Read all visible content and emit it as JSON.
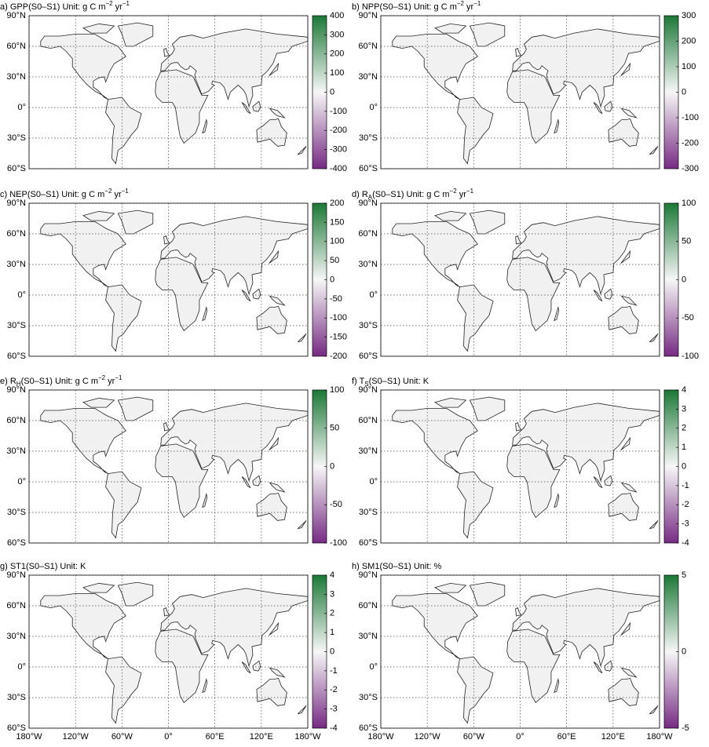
{
  "lat_ticks": [
    {
      "value": 90,
      "label": "90°N"
    },
    {
      "value": 60,
      "label": "60°N"
    },
    {
      "value": 30,
      "label": "30°N"
    },
    {
      "value": 0,
      "label": "0°"
    },
    {
      "value": -30,
      "label": "30°S"
    },
    {
      "value": -60,
      "label": "60°S"
    }
  ],
  "lon_ticks": [
    {
      "value": -180,
      "label": "180°W"
    },
    {
      "value": -120,
      "label": "120°W"
    },
    {
      "value": -60,
      "label": "60°W"
    },
    {
      "value": 0,
      "label": "0°"
    },
    {
      "value": 60,
      "label": "60°E"
    },
    {
      "value": 120,
      "label": "120°E"
    },
    {
      "value": 180,
      "label": "180°W"
    }
  ],
  "lon_range": [
    -180,
    180
  ],
  "lat_range": [
    -60,
    90
  ],
  "colors": {
    "low": "#762a83",
    "mid": "#f7f7f7",
    "high": "#1b7837"
  },
  "panels": [
    {
      "title": [
        {
          "text": "a) GPP(S0–S1) Unit: g C m"
        },
        {
          "sup": "−2"
        },
        {
          "text": " yr"
        },
        {
          "sup": "−1"
        }
      ],
      "clim": [
        -400,
        400
      ],
      "cbar_ticks": [
        400,
        300,
        200,
        100,
        0,
        -100,
        -200,
        -300,
        -400
      ]
    },
    {
      "title": [
        {
          "text": "b)  NPP(S0–S1) Unit: g C m"
        },
        {
          "sup": "−2"
        },
        {
          "text": " yr"
        },
        {
          "sup": "−1"
        }
      ],
      "clim": [
        -300,
        300
      ],
      "cbar_ticks": [
        300,
        200,
        100,
        0,
        -100,
        -200,
        -300
      ]
    },
    {
      "title": [
        {
          "text": "c) NEP(S0–S1) Unit: g C m"
        },
        {
          "sup": "−2"
        },
        {
          "text": " yr"
        },
        {
          "sup": "−1"
        }
      ],
      "clim": [
        -200,
        200
      ],
      "cbar_ticks": [
        200,
        150,
        100,
        50,
        0,
        -50,
        -100,
        -150,
        -200
      ]
    },
    {
      "title": [
        {
          "text": "d)  R"
        },
        {
          "sub": "A"
        },
        {
          "text": "(S0–S1) Unit: g C m"
        },
        {
          "sup": "−2"
        },
        {
          "text": " yr"
        },
        {
          "sup": "−1"
        }
      ],
      "clim": [
        -100,
        100
      ],
      "cbar_ticks": [
        100,
        50,
        0,
        -50,
        -100
      ]
    },
    {
      "title": [
        {
          "text": "e) R"
        },
        {
          "sub": "H"
        },
        {
          "text": "(S0–S1) Unit: g C m"
        },
        {
          "sup": "−2"
        },
        {
          "text": " yr"
        },
        {
          "sup": "−1"
        }
      ],
      "clim": [
        -100,
        100
      ],
      "cbar_ticks": [
        100,
        50,
        0,
        -50,
        -100
      ]
    },
    {
      "title": [
        {
          "text": "f)  T"
        },
        {
          "sub": "S"
        },
        {
          "text": "(S0–S1) Unit: K"
        }
      ],
      "clim": [
        -4,
        4
      ],
      "cbar_ticks": [
        4,
        3,
        2,
        1,
        0,
        -1,
        -2,
        -3,
        -4
      ]
    },
    {
      "title": [
        {
          "text": "g) ST1(S0–S1) Unit: K"
        }
      ],
      "clim": [
        -4,
        4
      ],
      "cbar_ticks": [
        4,
        3,
        2,
        1,
        0,
        -1,
        -2,
        -3,
        -4
      ]
    },
    {
      "title": [
        {
          "text": "h)  SM1(S0–S1) Unit: %"
        }
      ],
      "clim": [
        -5,
        5
      ],
      "cbar_ticks": [
        5,
        0,
        -5
      ]
    }
  ]
}
